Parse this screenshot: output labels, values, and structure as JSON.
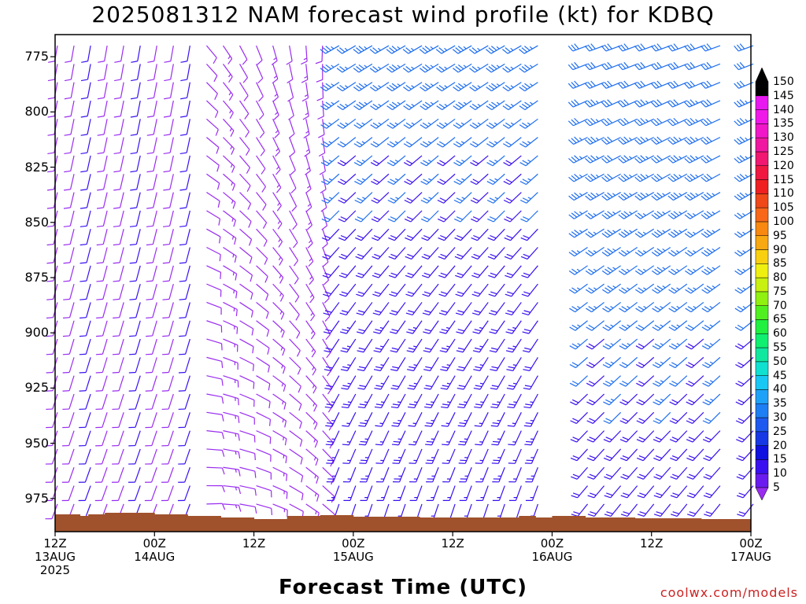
{
  "title": "2025081312 NAM forecast wind profile (kt) for KDBQ",
  "credit": "coolwx.com/models",
  "chart_data": {
    "type": "wind_barb_time_height",
    "xlabel": "Forecast Time (UTC)",
    "x_ticks": [
      {
        "hour": 0,
        "line1": "12Z",
        "line2": "13AUG",
        "line3": "2025"
      },
      {
        "hour": 12,
        "line1": "00Z",
        "line2": "14AUG",
        "line3": ""
      },
      {
        "hour": 24,
        "line1": "12Z",
        "line2": "",
        "line3": ""
      },
      {
        "hour": 36,
        "line1": "00Z",
        "line2": "15AUG",
        "line3": ""
      },
      {
        "hour": 48,
        "line1": "12Z",
        "line2": "",
        "line3": ""
      },
      {
        "hour": 60,
        "line1": "00Z",
        "line2": "16AUG",
        "line3": ""
      },
      {
        "hour": 72,
        "line1": "12Z",
        "line2": "",
        "line3": ""
      },
      {
        "hour": 84,
        "line1": "00Z",
        "line2": "17AUG",
        "line3": ""
      }
    ],
    "y_ticks": [
      "775",
      "800",
      "825",
      "850",
      "875",
      "900",
      "925",
      "950",
      "975"
    ],
    "ylim_hpa": [
      990,
      765
    ],
    "xlim_hours": [
      0,
      84
    ],
    "colorbar": {
      "levels": [
        "5",
        "10",
        "15",
        "20",
        "25",
        "30",
        "35",
        "40",
        "45",
        "50",
        "55",
        "60",
        "65",
        "70",
        "75",
        "80",
        "85",
        "90",
        "95",
        "100",
        "105",
        "110",
        "115",
        "120",
        "125",
        "130",
        "135",
        "140",
        "145",
        "150"
      ],
      "colors": [
        "#9a2cf0",
        "#6a1cf0",
        "#3a10f0",
        "#1010e0",
        "#1838e6",
        "#1e5af0",
        "#1e7ef4",
        "#1ea2f8",
        "#18c8f4",
        "#10e0d0",
        "#10e8a0",
        "#10f070",
        "#20f040",
        "#50f020",
        "#90f010",
        "#c8f010",
        "#f0f010",
        "#f8d010",
        "#f8a810",
        "#f88810",
        "#f86818",
        "#f04818",
        "#f02020",
        "#f01840",
        "#f01870",
        "#f018a0",
        "#f018c8",
        "#f018e8",
        "#e818f0",
        "#000000"
      ]
    },
    "terrain_color": "#a0522d",
    "barb_colors": {
      "light": "#9a2cf0",
      "moderate": "#3a10f0",
      "strong": "#1e6ef0"
    }
  }
}
